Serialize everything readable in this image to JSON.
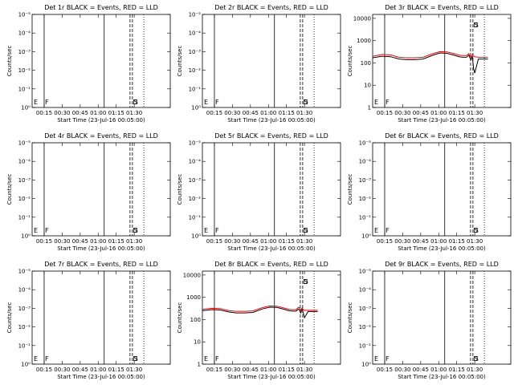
{
  "chart_data": {
    "type": "line",
    "shared": {
      "xlabel": "Start Time (23-Jul-16 00:05:00)",
      "ylabel": "Counts/sec",
      "xticks": [
        "00:15",
        "00:30",
        "00:45",
        "01:00",
        "01:15",
        "01:30"
      ],
      "xlim_minutes": [
        0,
        115
      ],
      "xtick_minutes": [
        10,
        25,
        40,
        55,
        70,
        85
      ],
      "marker_labels": [
        "E",
        "F",
        "D",
        "S"
      ],
      "marker_minutes": {
        "E": 0,
        "F": 10,
        "D": 83,
        "S": 84
      },
      "solid_lines_minutes": [
        10,
        60
      ],
      "dashed_lines_minutes": [
        81.5,
        83.5
      ],
      "dotted_lines_minutes": [
        93
      ]
    },
    "panels": [
      {
        "title": "Det 1r BLACK = Events, RED = LLD",
        "yticks": [
          "10⁰",
          "10⁻¹",
          "10⁻²",
          "10⁻³",
          "10⁻⁴",
          "10⁻⁵"
        ],
        "series": []
      },
      {
        "title": "Det 2r BLACK = Events, RED = LLD",
        "yticks": [
          "10⁰",
          "10⁻¹",
          "10⁻²",
          "10⁻³",
          "10⁻⁴",
          "10⁻⁵"
        ],
        "series": []
      },
      {
        "title": "Det 3r BLACK = Events, RED = LLD",
        "yticks": [
          "1",
          "10",
          "100",
          "1000",
          "10000"
        ],
        "ylog": [
          1,
          15000
        ],
        "series": [
          {
            "color": "#000000",
            "x": [
              0,
              8,
              15,
              22,
              28,
              35,
              42,
              50,
              56,
              62,
              68,
              72,
              75,
              78,
              80,
              81,
              82,
              83,
              84,
              85,
              88,
              92,
              96
            ],
            "y": [
              170,
              200,
              190,
              150,
              140,
              140,
              150,
              220,
              280,
              270,
              220,
              190,
              180,
              180,
              220,
              170,
              140,
              200,
              60,
              35,
              150,
              150,
              150
            ]
          },
          {
            "color": "#ff0000",
            "x": [
              0,
              8,
              15,
              22,
              28,
              35,
              42,
              50,
              56,
              62,
              68,
              72,
              75,
              78,
              80,
              81,
              82,
              83,
              84,
              85,
              88,
              92,
              96
            ],
            "y": [
              200,
              240,
              230,
              180,
              170,
              170,
              180,
              260,
              320,
              310,
              260,
              225,
              215,
              215,
              260,
              200,
              180,
              240,
              200,
              190,
              180,
              180,
              180
            ]
          }
        ]
      },
      {
        "title": "Det 4r BLACK = Events, RED = LLD",
        "yticks": [
          "10⁰",
          "10⁻¹",
          "10⁻²",
          "10⁻³",
          "10⁻⁴",
          "10⁻⁵"
        ],
        "series": []
      },
      {
        "title": "Det 5r BLACK = Events, RED = LLD",
        "yticks": [
          "10⁰",
          "10⁻¹",
          "10⁻²",
          "10⁻³",
          "10⁻⁴",
          "10⁻⁵"
        ],
        "series": []
      },
      {
        "title": "Det 6r BLACK = Events, RED = LLD",
        "yticks": [
          "10⁰",
          "10⁻¹",
          "10⁻²",
          "10⁻³",
          "10⁻⁴",
          "10⁻⁵"
        ],
        "series": []
      },
      {
        "title": "Det 7r BLACK = Events, RED = LLD",
        "yticks": [
          "10⁰",
          "10⁻¹",
          "10⁻²",
          "10⁻³",
          "10⁻⁴",
          "10⁻⁵"
        ],
        "series": []
      },
      {
        "title": "Det 8r BLACK = Events, RED = LLD",
        "yticks": [
          "1",
          "10",
          "100",
          "1000",
          "10000"
        ],
        "ylog": [
          1,
          15000
        ],
        "series": [
          {
            "color": "#000000",
            "x": [
              0,
              8,
              15,
              22,
              28,
              35,
              42,
              50,
              56,
              62,
              68,
              72,
              75,
              78,
              80,
              81,
              82,
              83,
              84,
              85,
              88,
              92,
              96
            ],
            "y": [
              250,
              280,
              270,
              220,
              200,
              200,
              210,
              300,
              360,
              350,
              290,
              250,
              240,
              240,
              300,
              260,
              200,
              300,
              200,
              120,
              230,
              230,
              230
            ]
          },
          {
            "color": "#ff0000",
            "x": [
              0,
              8,
              15,
              22,
              28,
              35,
              42,
              50,
              56,
              62,
              68,
              72,
              75,
              78,
              80,
              81,
              82,
              83,
              84,
              85,
              88,
              92,
              96
            ],
            "y": [
              290,
              320,
              310,
              255,
              235,
              235,
              245,
              345,
              410,
              400,
              330,
              290,
              280,
              280,
              360,
              330,
              270,
              330,
              280,
              260,
              260,
              260,
              260
            ]
          }
        ]
      },
      {
        "title": "Det 9r BLACK = Events, RED = LLD",
        "yticks": [
          "10⁰",
          "10⁻¹",
          "10⁻²",
          "10⁻³",
          "10⁻⁴",
          "10⁻⁵"
        ],
        "series": []
      }
    ]
  }
}
